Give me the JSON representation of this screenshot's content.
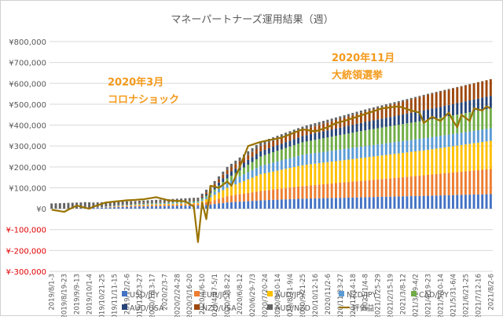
{
  "chart_data": {
    "type": "bar",
    "subtype": "stacked-bar-with-line",
    "title": "マネーパートナーズ運用結果（週）",
    "ylim": [
      -300000,
      800000
    ],
    "y_ticks": [
      800000,
      700000,
      600000,
      500000,
      400000,
      300000,
      200000,
      100000,
      0,
      -100000,
      -200000,
      -300000
    ],
    "y_tick_labels": [
      "¥800,000",
      "¥700,000",
      "¥600,000",
      "¥500,000",
      "¥400,000",
      "¥300,000",
      "¥200,000",
      "¥100,000",
      "¥0",
      "¥-100,000",
      "¥-200,000",
      "¥-300,000"
    ],
    "negative_label_color": "#e00000",
    "gridlines": true,
    "x_tick_labels": [
      "2019/8/1-3",
      "2019/8/19-23",
      "2019/9/9-13",
      "2019/10/1-4",
      "2019/10/21-25",
      "2019/11/11-15",
      "2019/12/2-6",
      "2019/12/23-27",
      "2020/1/13-17",
      "2020/2/3-7",
      "2020/2/24-28",
      "2020/3/16-20",
      "2020/4/6-10",
      "2020/4/27-5/1",
      "2020/5/18-22",
      "2020/6/8-12",
      "2020/6/29-7/3",
      "2020/7/20-24",
      "2020/8/10-14",
      "2020/8/31-9/4",
      "2020/9/21-25",
      "2020/10/12-16",
      "2020/11/2-6",
      "2020/11/23-27",
      "2020/12/14-18",
      "2021/1/4-8",
      "2021/1/25-29",
      "2021/2/15-19",
      "2021/3/8-12",
      "2021/3/29-4/2",
      "2021/4/19-23",
      "2021/5/10-14",
      "2021/5/31-6/4",
      "2021/6/21-25",
      "2021/7/12-16",
      "2021/8/2-6"
    ],
    "categories_count": 106,
    "series": [
      {
        "name": "USD/JPY",
        "color": "#4472c4",
        "anchors": [
          [
            0,
            0
          ],
          [
            7,
            0
          ],
          [
            8,
            3000
          ],
          [
            20,
            10000
          ],
          [
            35,
            15000
          ],
          [
            38,
            20000
          ],
          [
            42,
            30000
          ],
          [
            50,
            40000
          ],
          [
            60,
            48000
          ],
          [
            75,
            55000
          ],
          [
            90,
            62000
          ],
          [
            105,
            70000
          ]
        ]
      },
      {
        "name": "EUR/JPY",
        "color": "#ed7d31",
        "anchors": [
          [
            0,
            0
          ],
          [
            10,
            0
          ],
          [
            20,
            5000
          ],
          [
            35,
            8000
          ],
          [
            38,
            15000
          ],
          [
            42,
            30000
          ],
          [
            50,
            45000
          ],
          [
            60,
            60000
          ],
          [
            75,
            80000
          ],
          [
            90,
            100000
          ],
          [
            105,
            120000
          ]
        ]
      },
      {
        "name": "AUD/JPY",
        "color": "#ffc000",
        "anchors": [
          [
            0,
            0
          ],
          [
            10,
            0
          ],
          [
            20,
            3000
          ],
          [
            35,
            5000
          ],
          [
            38,
            20000
          ],
          [
            42,
            40000
          ],
          [
            50,
            80000
          ],
          [
            60,
            100000
          ],
          [
            75,
            110000
          ],
          [
            90,
            120000
          ],
          [
            105,
            135000
          ]
        ]
      },
      {
        "name": "NZD/JPY",
        "color": "#5b9bd5",
        "anchors": [
          [
            0,
            0
          ],
          [
            10,
            0
          ],
          [
            20,
            3000
          ],
          [
            35,
            5000
          ],
          [
            38,
            10000
          ],
          [
            42,
            25000
          ],
          [
            50,
            40000
          ],
          [
            60,
            50000
          ],
          [
            75,
            55000
          ],
          [
            90,
            58000
          ],
          [
            105,
            60000
          ]
        ]
      },
      {
        "name": "CAD/JPY",
        "color": "#70ad47",
        "anchors": [
          [
            0,
            0
          ],
          [
            10,
            0
          ],
          [
            20,
            2000
          ],
          [
            35,
            4000
          ],
          [
            38,
            10000
          ],
          [
            42,
            20000
          ],
          [
            50,
            45000
          ],
          [
            60,
            60000
          ],
          [
            75,
            75000
          ],
          [
            90,
            85000
          ],
          [
            105,
            95000
          ]
        ]
      },
      {
        "name": "AUD/USA",
        "color": "#264478",
        "anchors": [
          [
            0,
            0
          ],
          [
            10,
            0
          ],
          [
            20,
            2000
          ],
          [
            35,
            3000
          ],
          [
            38,
            10000
          ],
          [
            42,
            20000
          ],
          [
            50,
            25000
          ],
          [
            60,
            30000
          ],
          [
            75,
            40000
          ],
          [
            90,
            50000
          ],
          [
            105,
            60000
          ]
        ]
      },
      {
        "name": "NZD/USA",
        "color": "#9e480e",
        "anchors": [
          [
            0,
            0
          ],
          [
            10,
            0
          ],
          [
            20,
            2000
          ],
          [
            35,
            3000
          ],
          [
            38,
            10000
          ],
          [
            42,
            20000
          ],
          [
            50,
            25000
          ],
          [
            60,
            30000
          ],
          [
            75,
            50000
          ],
          [
            90,
            70000
          ],
          [
            105,
            80000
          ]
        ]
      },
      {
        "name": "AUD/NZD",
        "color": "#636363",
        "anchors": [
          [
            0,
            25000
          ],
          [
            7,
            30000
          ],
          [
            20,
            10000
          ],
          [
            35,
            10000
          ],
          [
            38,
            15000
          ],
          [
            42,
            15000
          ],
          [
            50,
            20000
          ],
          [
            60,
            15000
          ],
          [
            75,
            10000
          ],
          [
            90,
            5000
          ],
          [
            105,
            0
          ]
        ]
      }
    ],
    "line_series": {
      "name": "評価益",
      "color": "#997300",
      "anchors": [
        [
          0,
          -5000
        ],
        [
          3,
          -15000
        ],
        [
          6,
          15000
        ],
        [
          9,
          0
        ],
        [
          10,
          10000
        ],
        [
          13,
          30000
        ],
        [
          18,
          40000
        ],
        [
          22,
          45000
        ],
        [
          25,
          55000
        ],
        [
          28,
          40000
        ],
        [
          32,
          35000
        ],
        [
          34,
          10000
        ],
        [
          35,
          -160000
        ],
        [
          36,
          30000
        ],
        [
          37,
          -50000
        ],
        [
          38,
          110000
        ],
        [
          40,
          100000
        ],
        [
          42,
          130000
        ],
        [
          43,
          110000
        ],
        [
          45,
          200000
        ],
        [
          47,
          300000
        ],
        [
          50,
          320000
        ],
        [
          55,
          340000
        ],
        [
          60,
          380000
        ],
        [
          63,
          370000
        ],
        [
          66,
          390000
        ],
        [
          68,
          410000
        ],
        [
          70,
          420000
        ],
        [
          73,
          440000
        ],
        [
          76,
          460000
        ],
        [
          79,
          480000
        ],
        [
          83,
          490000
        ],
        [
          86,
          470000
        ],
        [
          88,
          460000
        ],
        [
          89,
          410000
        ],
        [
          91,
          440000
        ],
        [
          93,
          420000
        ],
        [
          95,
          460000
        ],
        [
          96,
          420000
        ],
        [
          97,
          390000
        ],
        [
          98,
          450000
        ],
        [
          100,
          420000
        ],
        [
          101,
          480000
        ],
        [
          103,
          470000
        ],
        [
          104,
          490000
        ],
        [
          105,
          480000
        ]
      ]
    },
    "legend": [
      "USD/JPY",
      "EUR/JPY",
      "AUD/JPY",
      "NZD/JPY",
      "CAD/JPY",
      "AUD/USA",
      "NZD/USA",
      "AUD/NZD",
      "評価益"
    ],
    "legend_position": "bottom",
    "annotations": [
      {
        "lines": [
          "2020年3月",
          "コロナショック"
        ],
        "color": "#f39a1c"
      },
      {
        "lines": [
          "2020年11月",
          "大統領選挙"
        ],
        "color": "#f39a1c"
      }
    ]
  }
}
